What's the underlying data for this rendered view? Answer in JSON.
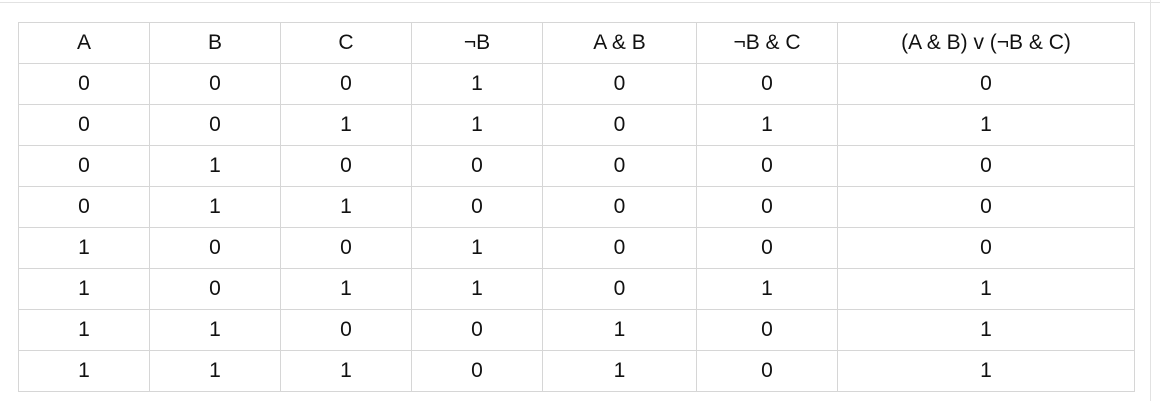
{
  "table": {
    "header": [
      "A",
      "B",
      "C",
      "¬B",
      "A & B",
      "¬B & C",
      "(A & B) v (¬B & C)"
    ],
    "rows": [
      [
        0,
        0,
        0,
        1,
        0,
        0,
        0
      ],
      [
        0,
        0,
        1,
        1,
        0,
        1,
        1
      ],
      [
        0,
        1,
        0,
        0,
        0,
        0,
        0
      ],
      [
        0,
        1,
        1,
        0,
        0,
        0,
        0
      ],
      [
        1,
        0,
        0,
        1,
        0,
        0,
        0
      ],
      [
        1,
        0,
        1,
        1,
        0,
        1,
        1
      ],
      [
        1,
        1,
        0,
        0,
        1,
        0,
        1
      ],
      [
        1,
        1,
        1,
        0,
        1,
        0,
        1
      ]
    ]
  }
}
